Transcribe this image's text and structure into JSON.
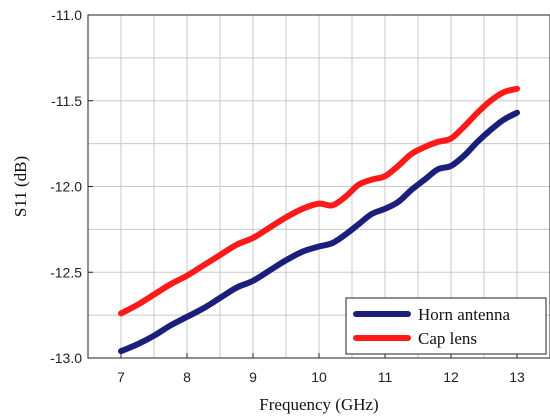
{
  "chart_data": {
    "type": "line",
    "xlabel": "Frequency (GHz)",
    "ylabel": "S11 (dB)",
    "xlim": [
      6.5,
      13.5
    ],
    "ylim": [
      -13.0,
      -11.0
    ],
    "x_ticks": [
      7,
      8,
      9,
      10,
      11,
      12,
      13
    ],
    "x_tick_labels": [
      "7",
      "8",
      "9",
      "10",
      "11",
      "12",
      "13"
    ],
    "y_ticks": [
      -11.0,
      -11.5,
      -12.0,
      -12.5,
      -13.0
    ],
    "y_tick_labels": [
      "-11.0",
      "-11.5",
      "-12.0",
      "-12.5",
      "-13.0"
    ],
    "x_grid_step": 0.5,
    "y_grid_step": 0.25,
    "grid": true,
    "legend_position": "bottom-right",
    "series": [
      {
        "name": "Horn antenna",
        "color": "#1b1f7a",
        "x": [
          7.0,
          7.25,
          7.5,
          7.75,
          8.0,
          8.25,
          8.5,
          8.75,
          9.0,
          9.25,
          9.5,
          9.75,
          10.0,
          10.2,
          10.4,
          10.6,
          10.8,
          11.0,
          11.2,
          11.4,
          11.6,
          11.8,
          12.0,
          12.2,
          12.4,
          12.6,
          12.8,
          13.0
        ],
        "y": [
          -12.96,
          -12.92,
          -12.87,
          -12.81,
          -12.76,
          -12.71,
          -12.65,
          -12.59,
          -12.55,
          -12.49,
          -12.43,
          -12.38,
          -12.35,
          -12.33,
          -12.28,
          -12.22,
          -12.16,
          -12.13,
          -12.09,
          -12.02,
          -11.96,
          -11.9,
          -11.88,
          -11.82,
          -11.74,
          -11.67,
          -11.61,
          -11.57
        ]
      },
      {
        "name": "Cap lens",
        "color": "#ff1a1a",
        "x": [
          7.0,
          7.25,
          7.5,
          7.75,
          8.0,
          8.25,
          8.5,
          8.75,
          9.0,
          9.25,
          9.5,
          9.75,
          10.0,
          10.2,
          10.4,
          10.6,
          10.8,
          11.0,
          11.2,
          11.4,
          11.6,
          11.8,
          12.0,
          12.2,
          12.4,
          12.6,
          12.8,
          13.0
        ],
        "y": [
          -12.74,
          -12.69,
          -12.63,
          -12.57,
          -12.52,
          -12.46,
          -12.4,
          -12.34,
          -12.3,
          -12.24,
          -12.18,
          -12.13,
          -12.1,
          -12.11,
          -12.06,
          -11.99,
          -11.96,
          -11.94,
          -11.88,
          -11.81,
          -11.77,
          -11.74,
          -11.72,
          -11.65,
          -11.57,
          -11.5,
          -11.45,
          -11.43
        ]
      }
    ]
  }
}
